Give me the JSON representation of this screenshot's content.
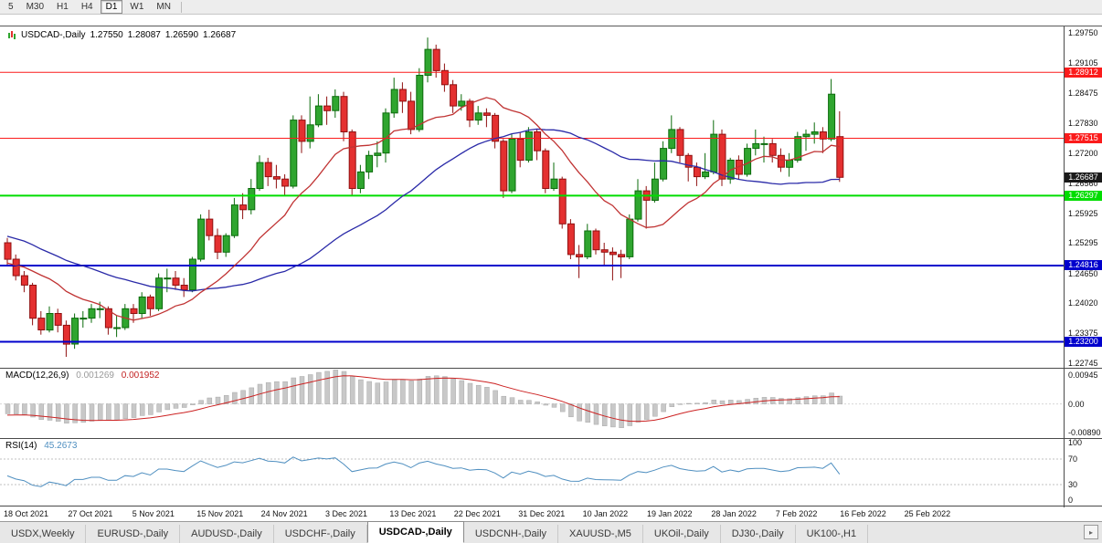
{
  "toolbar": {
    "timeframes": [
      {
        "label": "5",
        "active": false
      },
      {
        "label": "M30",
        "active": false
      },
      {
        "label": "H1",
        "active": false
      },
      {
        "label": "H4",
        "active": false
      },
      {
        "label": "D1",
        "active": true
      },
      {
        "label": "W1",
        "active": false
      },
      {
        "label": "MN",
        "active": false
      }
    ]
  },
  "title": {
    "symbol": "USDCAD-,Daily",
    "open": "1.27550",
    "high": "1.28087",
    "low": "1.26590",
    "close": "1.26687"
  },
  "indicators": {
    "macd": {
      "name": "MACD(12,26,9)",
      "value": "0.001269",
      "signal_value": "0.001952",
      "axis_labels": [
        "0.00945",
        "0.00",
        "-0.00890"
      ],
      "fast": 12,
      "slow": 26,
      "signal": 9
    },
    "rsi": {
      "name": "RSI(14)",
      "value": "45.2673",
      "axis_labels": [
        "100",
        "70",
        "30",
        "0"
      ],
      "levels": [
        70,
        30
      ],
      "period": 14
    }
  },
  "chart_data": {
    "type": "candlestick",
    "symbol": "USDCAD",
    "timeframe": "Daily",
    "dates": [
      "18 Oct 2021",
      "27 Oct 2021",
      "5 Nov 2021",
      "15 Nov 2021",
      "24 Nov 2021",
      "3 Dec 2021",
      "13 Dec 2021",
      "22 Dec 2021",
      "31 Dec 2021",
      "10 Jan 2022",
      "19 Jan 2022",
      "28 Jan 2022",
      "7 Feb 2022",
      "16 Feb 2022",
      "25 Feb 2022"
    ],
    "price_axis_labels": [
      "1.29750",
      "1.29105",
      "1.28475",
      "1.27830",
      "1.27200",
      "1.26560",
      "1.25925",
      "1.25295",
      "1.24650",
      "1.24020",
      "1.23375",
      "1.22745"
    ],
    "hlines": [
      {
        "price": 1.28912,
        "label": "1.28912",
        "color": "#fb1b1b",
        "width": 1
      },
      {
        "price": 1.27515,
        "label": "1.27515",
        "color": "#fb1b1b",
        "width": 1
      },
      {
        "price": 1.26297,
        "label": "1.26297",
        "color": "#00dd00",
        "width": 2
      },
      {
        "price": 1.24816,
        "label": "1.24816",
        "color": "#0000cd",
        "width": 2
      },
      {
        "price": 1.232,
        "label": "1.23200",
        "color": "#0000cd",
        "width": 2
      }
    ],
    "current_price": {
      "price": 1.26687,
      "label": "1.26687",
      "color": "#1a1a1a"
    },
    "ma": {
      "fast_period": 13,
      "slow_period": 34,
      "fast_color": "#c03333",
      "slow_color": "#2a2aa8"
    },
    "colors": {
      "up_fill": "#2fa52f",
      "up_stroke": "#0b6b0b",
      "down_fill": "#e43030",
      "down_stroke": "#8f1010",
      "macd_bar": "#c8c8c8",
      "macd_bar_stroke": "#a9a9a9",
      "macd_signal": "#cc2222",
      "rsi_line": "#4f8fc0",
      "level_line": "#c0c0c0"
    },
    "prehistory_closes": [
      1.265,
      1.263,
      1.261,
      1.264,
      1.266,
      1.264,
      1.262,
      1.26,
      1.258,
      1.256,
      1.2585,
      1.2605,
      1.258,
      1.255,
      1.253,
      1.2555,
      1.2575,
      1.255,
      1.252,
      1.25,
      1.252,
      1.2545,
      1.252,
      1.2495,
      1.2475,
      1.246,
      1.248,
      1.25,
      1.2515,
      1.249,
      1.247,
      1.2455,
      1.247,
      1.2505
    ],
    "candles": [
      [
        1.253,
        1.254,
        1.248,
        1.2495
      ],
      [
        1.2495,
        1.2505,
        1.245,
        1.246
      ],
      [
        1.246,
        1.247,
        1.2425,
        1.244
      ],
      [
        1.244,
        1.2445,
        1.2355,
        1.237
      ],
      [
        1.237,
        1.2385,
        1.2335,
        1.2345
      ],
      [
        1.2345,
        1.2395,
        1.234,
        1.238
      ],
      [
        1.238,
        1.239,
        1.234,
        1.2355
      ],
      [
        1.2355,
        1.2365,
        1.2288,
        1.2315
      ],
      [
        1.2315,
        1.238,
        1.2305,
        1.237
      ],
      [
        1.237,
        1.2385,
        1.235,
        1.237
      ],
      [
        1.237,
        1.24,
        1.236,
        1.239
      ],
      [
        1.239,
        1.2405,
        1.237,
        1.239
      ],
      [
        1.239,
        1.2395,
        1.2335,
        1.235
      ],
      [
        1.235,
        1.2375,
        1.233,
        1.235
      ],
      [
        1.235,
        1.24,
        1.2345,
        1.239
      ],
      [
        1.239,
        1.24,
        1.236,
        1.238
      ],
      [
        1.238,
        1.2425,
        1.237,
        1.2415
      ],
      [
        1.2415,
        1.242,
        1.2375,
        1.239
      ],
      [
        1.239,
        1.2465,
        1.2385,
        1.2455
      ],
      [
        1.2455,
        1.2475,
        1.2425,
        1.2455
      ],
      [
        1.2455,
        1.247,
        1.243,
        1.244
      ],
      [
        1.244,
        1.2455,
        1.2415,
        1.243
      ],
      [
        1.243,
        1.25,
        1.2425,
        1.2495
      ],
      [
        1.2495,
        1.259,
        1.249,
        1.258
      ],
      [
        1.258,
        1.26,
        1.2535,
        1.2545
      ],
      [
        1.2545,
        1.256,
        1.2495,
        1.251
      ],
      [
        1.251,
        1.255,
        1.25,
        1.2545
      ],
      [
        1.2545,
        1.2625,
        1.254,
        1.261
      ],
      [
        1.261,
        1.2635,
        1.258,
        1.26
      ],
      [
        1.26,
        1.2665,
        1.259,
        1.2645
      ],
      [
        1.2645,
        1.2715,
        1.264,
        1.27
      ],
      [
        1.27,
        1.271,
        1.265,
        1.267
      ],
      [
        1.267,
        1.2695,
        1.2645,
        1.2665
      ],
      [
        1.2665,
        1.2675,
        1.263,
        1.265
      ],
      [
        1.265,
        1.28,
        1.2645,
        1.279
      ],
      [
        1.279,
        1.28,
        1.272,
        1.2745
      ],
      [
        1.2745,
        1.284,
        1.273,
        1.278
      ],
      [
        1.278,
        1.2845,
        1.2775,
        1.282
      ],
      [
        1.282,
        1.284,
        1.278,
        1.281
      ],
      [
        1.281,
        1.2855,
        1.2795,
        1.284
      ],
      [
        1.284,
        1.285,
        1.2745,
        1.2765
      ],
      [
        1.2765,
        1.277,
        1.263,
        1.2645
      ],
      [
        1.2645,
        1.2695,
        1.2635,
        1.268
      ],
      [
        1.268,
        1.2725,
        1.2665,
        1.2715
      ],
      [
        1.2715,
        1.2745,
        1.269,
        1.272
      ],
      [
        1.272,
        1.2815,
        1.27,
        1.2805
      ],
      [
        1.2805,
        1.288,
        1.2795,
        1.2855
      ],
      [
        1.2855,
        1.287,
        1.2805,
        1.283
      ],
      [
        1.283,
        1.285,
        1.276,
        1.277
      ],
      [
        1.277,
        1.29,
        1.2765,
        1.2885
      ],
      [
        1.2885,
        1.2965,
        1.287,
        1.294
      ],
      [
        1.294,
        1.295,
        1.288,
        1.2895
      ],
      [
        1.2895,
        1.291,
        1.285,
        1.2865
      ],
      [
        1.2865,
        1.2875,
        1.2805,
        1.282
      ],
      [
        1.282,
        1.2845,
        1.281,
        1.283
      ],
      [
        1.283,
        1.2835,
        1.2775,
        1.279
      ],
      [
        1.279,
        1.282,
        1.278,
        1.2805
      ],
      [
        1.2805,
        1.2815,
        1.2775,
        1.28
      ],
      [
        1.28,
        1.2805,
        1.273,
        1.2745
      ],
      [
        1.2745,
        1.275,
        1.2625,
        1.264
      ],
      [
        1.264,
        1.276,
        1.2635,
        1.275
      ],
      [
        1.275,
        1.2765,
        1.269,
        1.2705
      ],
      [
        1.2705,
        1.2775,
        1.27,
        1.2765
      ],
      [
        1.2765,
        1.277,
        1.2705,
        1.2725
      ],
      [
        1.2725,
        1.273,
        1.2635,
        1.2645
      ],
      [
        1.2645,
        1.27,
        1.264,
        1.2665
      ],
      [
        1.2665,
        1.267,
        1.256,
        1.257
      ],
      [
        1.257,
        1.258,
        1.2495,
        1.2505
      ],
      [
        1.2505,
        1.2525,
        1.2455,
        1.25
      ],
      [
        1.25,
        1.257,
        1.2495,
        1.2555
      ],
      [
        1.2555,
        1.256,
        1.2505,
        1.2515
      ],
      [
        1.2515,
        1.253,
        1.248,
        1.251
      ],
      [
        1.251,
        1.252,
        1.245,
        1.2505
      ],
      [
        1.2505,
        1.2515,
        1.2455,
        1.25
      ],
      [
        1.25,
        1.259,
        1.2495,
        1.258
      ],
      [
        1.258,
        1.2665,
        1.2575,
        1.264
      ],
      [
        1.264,
        1.265,
        1.256,
        1.262
      ],
      [
        1.262,
        1.27,
        1.2615,
        1.2665
      ],
      [
        1.2665,
        1.2745,
        1.266,
        1.273
      ],
      [
        1.273,
        1.28,
        1.272,
        1.277
      ],
      [
        1.277,
        1.2775,
        1.27,
        1.2715
      ],
      [
        1.2715,
        1.272,
        1.266,
        1.269
      ],
      [
        1.269,
        1.27,
        1.265,
        1.267
      ],
      [
        1.267,
        1.272,
        1.2665,
        1.268
      ],
      [
        1.268,
        1.279,
        1.2675,
        1.276
      ],
      [
        1.276,
        1.277,
        1.265,
        1.2665
      ],
      [
        1.2665,
        1.271,
        1.2655,
        1.2705
      ],
      [
        1.2705,
        1.2715,
        1.2665,
        1.2675
      ],
      [
        1.2675,
        1.274,
        1.267,
        1.273
      ],
      [
        1.273,
        1.277,
        1.2715,
        1.274
      ],
      [
        1.274,
        1.2755,
        1.27,
        1.274
      ],
      [
        1.274,
        1.275,
        1.27,
        1.2715
      ],
      [
        1.2715,
        1.273,
        1.268,
        1.269
      ],
      [
        1.269,
        1.272,
        1.267,
        1.2705
      ],
      [
        1.2705,
        1.2765,
        1.27,
        1.2755
      ],
      [
        1.2755,
        1.277,
        1.2725,
        1.276
      ],
      [
        1.276,
        1.2785,
        1.274,
        1.2765
      ],
      [
        1.2765,
        1.2775,
        1.272,
        1.275
      ],
      [
        1.275,
        1.2877,
        1.2745,
        1.2845
      ],
      [
        1.2755,
        1.28087,
        1.2659,
        1.26687
      ]
    ]
  },
  "tabs": [
    {
      "label": "USDX,Weekly",
      "active": false
    },
    {
      "label": "EURUSD-,Daily",
      "active": false
    },
    {
      "label": "AUDUSD-,Daily",
      "active": false
    },
    {
      "label": "USDCHF-,Daily",
      "active": false
    },
    {
      "label": "USDCAD-,Daily",
      "active": true
    },
    {
      "label": "USDCNH-,Daily",
      "active": false
    },
    {
      "label": "XAUUSD-,M5",
      "active": false
    },
    {
      "label": "UKOil-,Daily",
      "active": false
    },
    {
      "label": "DJ30-,Daily",
      "active": false
    },
    {
      "label": "UK100-,H1",
      "active": false
    }
  ]
}
